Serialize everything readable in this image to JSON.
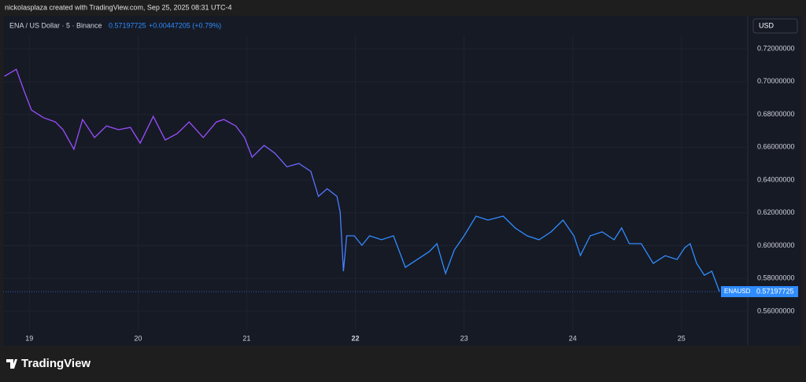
{
  "header": {
    "credit": "nickolasplaza created with TradingView.com, Sep 25, 2025 08:31 UTC-4"
  },
  "chart_data": {
    "type": "line",
    "title": "ENA / US Dollar · 5 · Binance",
    "last_price": 0.57197725,
    "change": "+0.00447205 (+0.79%)",
    "currency": "USD",
    "x": [
      18.77,
      18.88,
      18.95,
      19.02,
      19.13,
      19.24,
      19.31,
      19.41,
      19.49,
      19.6,
      19.71,
      19.82,
      19.93,
      20.02,
      20.14,
      20.25,
      20.36,
      20.47,
      20.6,
      20.72,
      20.79,
      20.9,
      20.98,
      21.05,
      21.16,
      21.26,
      21.37,
      21.48,
      21.59,
      21.66,
      21.74,
      21.83,
      21.86,
      21.89,
      21.92,
      21.99,
      22.06,
      22.13,
      22.24,
      22.35,
      22.46,
      22.57,
      22.68,
      22.75,
      22.83,
      22.91,
      23.0,
      23.11,
      23.22,
      23.36,
      23.47,
      23.58,
      23.69,
      23.8,
      23.91,
      24.01,
      24.07,
      24.16,
      24.27,
      24.38,
      24.45,
      24.52,
      24.63,
      24.74,
      24.85,
      24.96,
      25.03,
      25.08,
      25.14,
      25.21,
      25.28,
      25.35
    ],
    "series": [
      {
        "name": "ENAUSD",
        "gradient": [
          "#9b4dff",
          "#2f8cff"
        ],
        "values": [
          0.7032,
          0.7075,
          0.6946,
          0.6826,
          0.678,
          0.6754,
          0.6707,
          0.6587,
          0.6769,
          0.6659,
          0.673,
          0.6707,
          0.6721,
          0.6625,
          0.6788,
          0.6644,
          0.6683,
          0.6754,
          0.6659,
          0.6754,
          0.6769,
          0.673,
          0.6659,
          0.6539,
          0.6611,
          0.6563,
          0.6481,
          0.6501,
          0.6453,
          0.63,
          0.6347,
          0.63,
          0.6204,
          0.5844,
          0.606,
          0.606,
          0.6002,
          0.606,
          0.6036,
          0.606,
          0.5868,
          0.5916,
          0.5964,
          0.6012,
          0.583,
          0.5974,
          0.606,
          0.618,
          0.6156,
          0.618,
          0.6108,
          0.606,
          0.6036,
          0.6084,
          0.6156,
          0.606,
          0.594,
          0.606,
          0.6084,
          0.6036,
          0.6108,
          0.6012,
          0.6012,
          0.5892,
          0.5939,
          0.5916,
          0.5988,
          0.6012,
          0.5892,
          0.582,
          0.5844,
          0.57197725
        ]
      }
    ],
    "xlim": [
      18.73,
      25.61
    ],
    "xticks": [
      19,
      20,
      21,
      22,
      23,
      24,
      25
    ],
    "ylim": [
      0.5399,
      0.7392
    ],
    "yticks": [
      {
        "value": 0.72,
        "label": "0.72000000"
      },
      {
        "value": 0.7,
        "label": "0.70000000"
      },
      {
        "value": 0.68,
        "label": "0.68000000"
      },
      {
        "value": 0.66,
        "label": "0.66000000"
      },
      {
        "value": 0.64,
        "label": "0.64000000"
      },
      {
        "value": 0.62,
        "label": "0.62000000"
      },
      {
        "value": 0.6,
        "label": "0.60000000"
      },
      {
        "value": 0.58,
        "label": "0.58000000"
      },
      {
        "value": 0.56,
        "label": "0.56000000"
      }
    ],
    "grid": true
  },
  "footer": {
    "brand": "TradingView"
  }
}
